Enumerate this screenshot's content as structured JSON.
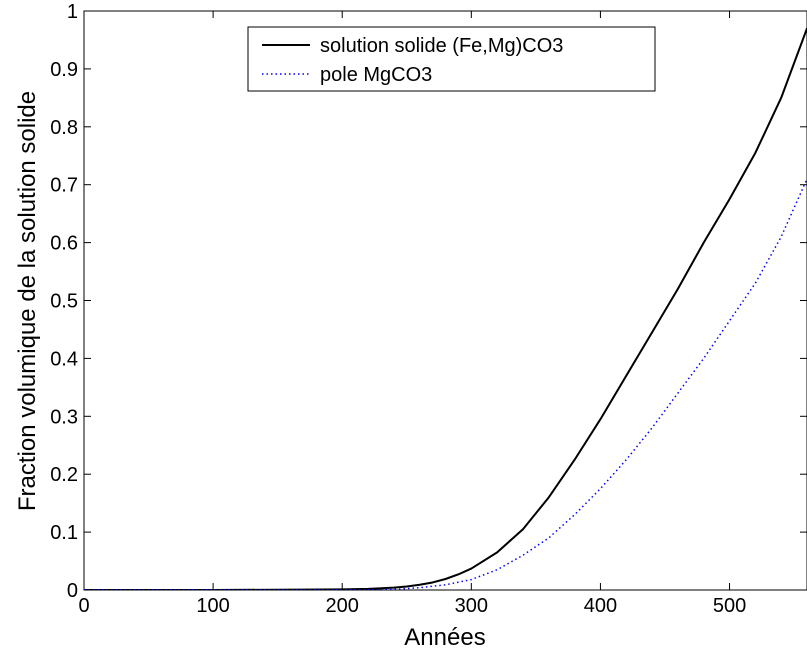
{
  "chart_data": {
    "type": "line",
    "xlabel": "Années",
    "ylabel": "Fraction volumique de la solution solide",
    "xlim": [
      0,
      560
    ],
    "ylim": [
      0,
      1
    ],
    "x_ticks": [
      0,
      100,
      200,
      300,
      400,
      500
    ],
    "x_tick_labels": [
      "0",
      "100",
      "200",
      "300",
      "400",
      "500"
    ],
    "y_ticks": [
      0,
      0.1,
      0.2,
      0.3,
      0.4,
      0.5,
      0.6,
      0.7,
      0.8,
      0.9,
      1
    ],
    "y_tick_labels": [
      "0",
      "0.1",
      "0.2",
      "0.3",
      "0.4",
      "0.5",
      "0.6",
      "0.7",
      "0.8",
      "0.9",
      "1"
    ],
    "grid": false,
    "legend_position": "top-center",
    "series": [
      {
        "name": "solution solide (Fe,Mg)CO3",
        "color": "#000000",
        "style": "solid",
        "x": [
          0,
          100,
          200,
          220,
          240,
          250,
          260,
          270,
          280,
          290,
          300,
          320,
          340,
          360,
          380,
          400,
          420,
          440,
          460,
          480,
          500,
          520,
          540,
          560
        ],
        "y": [
          0,
          0,
          0.001,
          0.002,
          0.004,
          0.006,
          0.009,
          0.013,
          0.019,
          0.027,
          0.037,
          0.065,
          0.105,
          0.16,
          0.225,
          0.295,
          0.37,
          0.445,
          0.52,
          0.6,
          0.675,
          0.755,
          0.85,
          0.97
        ]
      },
      {
        "name": "pole MgCO3",
        "color": "#0000ff",
        "style": "dotted",
        "x": [
          0,
          100,
          200,
          240,
          260,
          280,
          300,
          320,
          340,
          360,
          380,
          400,
          420,
          440,
          460,
          480,
          500,
          520,
          540,
          560
        ],
        "y": [
          0,
          0,
          0,
          0.001,
          0.004,
          0.009,
          0.018,
          0.035,
          0.06,
          0.09,
          0.13,
          0.175,
          0.225,
          0.28,
          0.34,
          0.4,
          0.465,
          0.53,
          0.61,
          0.71
        ]
      }
    ]
  }
}
